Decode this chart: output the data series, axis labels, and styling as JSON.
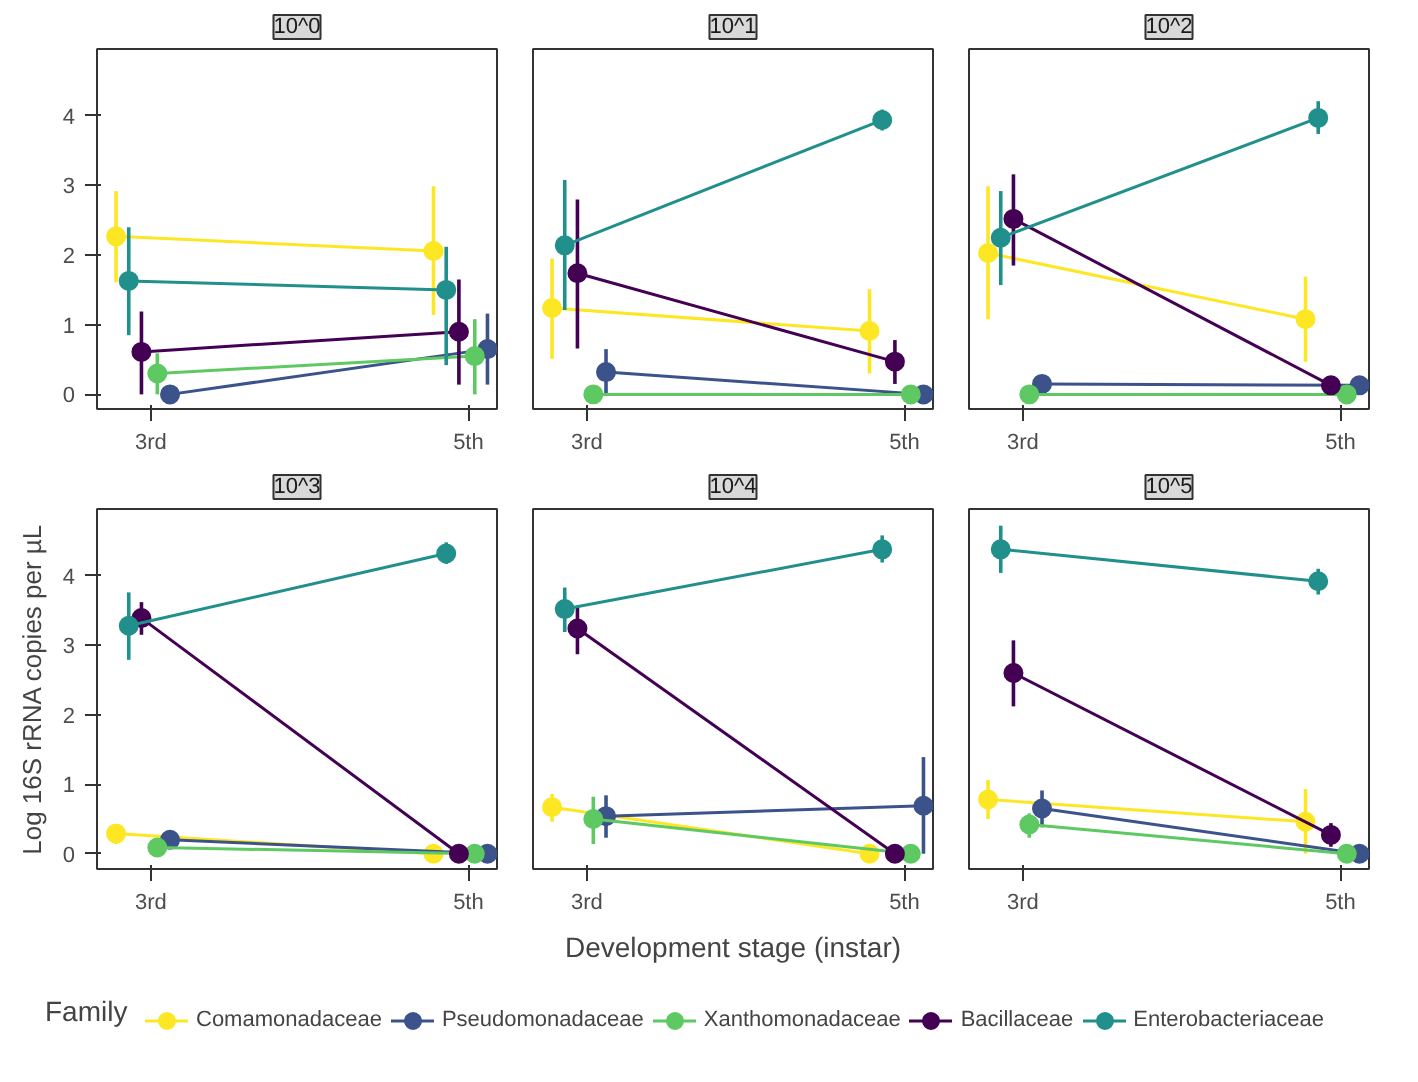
{
  "chart_data": [
    {
      "type": "line",
      "title": "10^0",
      "marker": "circle",
      "categories": [
        "3rd",
        "5th"
      ],
      "ylim": [
        -0.21,
        4.96
      ],
      "yticks": [
        0,
        1,
        2,
        3,
        4
      ],
      "series": [
        {
          "color": "#fde725",
          "values": [
            2.27,
            2.06
          ],
          "errors": [
            [
              1.61,
              2.92
            ],
            [
              1.14,
              2.99
            ]
          ]
        },
        {
          "color": "#3b528b",
          "values": [
            0,
            0.65
          ],
          "errors": [
            null,
            [
              0.14,
              1.16
            ]
          ]
        },
        {
          "color": "#5ec962",
          "values": [
            0.3,
            0.55
          ],
          "errors": [
            [
              0,
              0.59
            ],
            [
              0,
              1.08
            ]
          ]
        },
        {
          "color": "#440154",
          "values": [
            0.61,
            0.9
          ],
          "errors": [
            [
              0,
              1.19
            ],
            [
              0.14,
              1.65
            ]
          ]
        },
        {
          "color": "#21908c",
          "values": [
            1.63,
            1.5
          ],
          "errors": [
            [
              0.85,
              2.4
            ],
            [
              0.42,
              2.12
            ]
          ]
        }
      ]
    },
    {
      "type": "line",
      "title": "10^1",
      "marker": "circle",
      "categories": [
        "3rd",
        "5th"
      ],
      "ylim": [
        -0.21,
        4.96
      ],
      "yticks": [
        0,
        1,
        2,
        3,
        4
      ],
      "tick_labels": "x",
      "series": [
        {
          "color": "#fde725",
          "values": [
            1.24,
            0.91
          ],
          "errors": [
            [
              0.51,
              1.95
            ],
            [
              0.3,
              1.51
            ]
          ]
        },
        {
          "color": "#3b528b",
          "values": [
            0.32,
            0
          ],
          "errors": [
            [
              0,
              0.65
            ],
            null
          ]
        },
        {
          "color": "#5ec962",
          "values": [
            0,
            0
          ],
          "errors": [
            null,
            null
          ]
        },
        {
          "color": "#440154",
          "values": [
            1.74,
            0.47
          ],
          "errors": [
            [
              0.66,
              2.8
            ],
            [
              0.15,
              0.78
            ]
          ]
        },
        {
          "color": "#21908c",
          "values": [
            2.14,
            3.94
          ],
          "errors": [
            [
              1.21,
              3.08
            ],
            [
              3.79,
              4.09
            ]
          ]
        }
      ]
    },
    {
      "type": "line",
      "title": "10^2",
      "marker": "circle",
      "categories": [
        "3rd",
        "5th"
      ],
      "ylim": [
        -0.21,
        4.96
      ],
      "yticks": [
        0,
        1,
        2,
        3,
        4
      ],
      "tick_labels": "x",
      "series": [
        {
          "color": "#fde725",
          "values": [
            2.03,
            1.08
          ],
          "errors": [
            [
              1.08,
              2.99
            ],
            [
              0.47,
              1.69
            ]
          ]
        },
        {
          "color": "#3b528b",
          "values": [
            0.15,
            0.13
          ],
          "errors": [
            [
              0.06,
              0.23
            ],
            null
          ]
        },
        {
          "color": "#5ec962",
          "values": [
            0,
            0
          ],
          "errors": [
            null,
            null
          ]
        },
        {
          "color": "#440154",
          "values": [
            2.52,
            0.13
          ],
          "errors": [
            [
              1.85,
              3.16
            ],
            null
          ]
        },
        {
          "color": "#21908c",
          "values": [
            2.25,
            3.97
          ],
          "errors": [
            [
              1.57,
              2.92
            ],
            [
              3.74,
              4.21
            ]
          ]
        }
      ]
    },
    {
      "type": "line",
      "title": "10^3",
      "ylabel": "Log 16S rRNA copies per µL",
      "marker": "circle",
      "categories": [
        "3rd",
        "5th"
      ],
      "ylim": [
        -0.22,
        4.96
      ],
      "yticks": [
        0,
        1,
        2,
        3,
        4
      ],
      "series": [
        {
          "color": "#fde725",
          "values": [
            0.29,
            0
          ],
          "errors": [
            [
              0.14,
              0.4
            ],
            null
          ]
        },
        {
          "color": "#3b528b",
          "values": [
            0.2,
            0
          ],
          "errors": [
            [
              0.1,
              0.31
            ],
            null
          ]
        },
        {
          "color": "#5ec962",
          "values": [
            0.09,
            0
          ],
          "errors": [
            null,
            null
          ]
        },
        {
          "color": "#440154",
          "values": [
            3.39,
            0
          ],
          "errors": [
            [
              3.15,
              3.62
            ],
            null
          ]
        },
        {
          "color": "#21908c",
          "values": [
            3.28,
            4.32
          ],
          "errors": [
            [
              2.79,
              3.76
            ],
            [
              4.17,
              4.48
            ]
          ]
        }
      ]
    },
    {
      "type": "line",
      "title": "10^4",
      "xlabel": "Development stage (instar)",
      "legend": "bottom",
      "legend_title": "Family",
      "marker": "circle",
      "categories": [
        "3rd",
        "5th"
      ],
      "ylim": [
        -0.22,
        4.96
      ],
      "yticks": [
        0,
        1,
        2,
        3,
        4
      ],
      "tick_labels": "x",
      "series": [
        {
          "name": "Comamonadaceae",
          "color": "#fde725",
          "values": [
            0.67,
            0
          ],
          "errors": [
            [
              0.46,
              0.86
            ],
            null
          ]
        },
        {
          "name": "Pseudomonadaceae",
          "color": "#3b528b",
          "values": [
            0.54,
            0.69
          ],
          "errors": [
            [
              0.23,
              0.84
            ],
            [
              0,
              1.39
            ]
          ]
        },
        {
          "name": "Xanthomonadaceae",
          "color": "#5ec962",
          "values": [
            0.5,
            0
          ],
          "errors": [
            [
              0.14,
              0.82
            ],
            null
          ]
        },
        {
          "name": "Bacillaceae",
          "color": "#440154",
          "values": [
            3.24,
            0
          ],
          "errors": [
            [
              2.87,
              3.56
            ],
            null
          ]
        },
        {
          "name": "Enterobacteriaceae",
          "color": "#21908c",
          "values": [
            3.52,
            4.38
          ],
          "errors": [
            [
              3.19,
              3.83
            ],
            [
              4.19,
              4.58
            ]
          ]
        }
      ]
    },
    {
      "type": "line",
      "title": "10^5",
      "marker": "circle",
      "categories": [
        "3rd",
        "5th"
      ],
      "ylim": [
        -0.22,
        4.96
      ],
      "yticks": [
        0,
        1,
        2,
        3,
        4
      ],
      "tick_labels": "x",
      "series": [
        {
          "color": "#fde725",
          "values": [
            0.78,
            0.46
          ],
          "errors": [
            [
              0.5,
              1.06
            ],
            [
              0,
              0.93
            ]
          ]
        },
        {
          "color": "#3b528b",
          "values": [
            0.65,
            0
          ],
          "errors": [
            [
              0.38,
              0.91
            ],
            null
          ]
        },
        {
          "color": "#5ec962",
          "values": [
            0.42,
            0
          ],
          "errors": [
            [
              0.23,
              0.58
            ],
            null
          ]
        },
        {
          "color": "#440154",
          "values": [
            2.6,
            0.27
          ],
          "errors": [
            [
              2.12,
              3.07
            ],
            [
              0.1,
              0.44
            ]
          ]
        },
        {
          "color": "#21908c",
          "values": [
            4.38,
            3.92
          ],
          "errors": [
            [
              4.04,
              4.72
            ],
            [
              3.73,
              4.1
            ]
          ]
        }
      ]
    }
  ]
}
